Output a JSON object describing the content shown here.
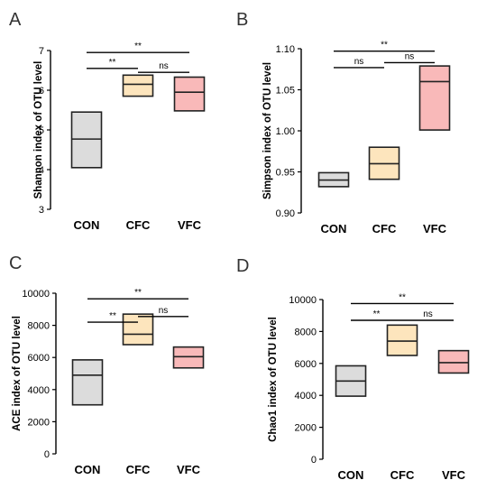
{
  "colors": {
    "CON": "#dcdcdc",
    "CFC": "#fde5bd",
    "VFC": "#f9b9b9",
    "line": "#000000"
  },
  "chart_data": [
    {
      "panel": "A",
      "type": "box",
      "ylabel": "Shannon index of OTU level",
      "ylim": [
        3,
        7
      ],
      "yticks": [
        3,
        4,
        5,
        6,
        7
      ],
      "yticklabels": [
        "3",
        "4",
        "5",
        "6",
        "7"
      ],
      "categories": [
        "CON",
        "CFC",
        "VFC"
      ],
      "boxes": [
        {
          "name": "CON",
          "min": 4.05,
          "median": 4.77,
          "max": 5.45
        },
        {
          "name": "CFC",
          "min": 5.85,
          "median": 6.15,
          "max": 6.38
        },
        {
          "name": "VFC",
          "min": 5.48,
          "median": 5.95,
          "max": 6.33
        }
      ],
      "significance": [
        {
          "from": 0,
          "to": 2,
          "label": "**",
          "level": 6.95
        },
        {
          "from": 0,
          "to": 1,
          "label": "**",
          "level": 6.55
        },
        {
          "from": 1,
          "to": 2,
          "label": "ns",
          "level": 6.45
        }
      ]
    },
    {
      "panel": "B",
      "type": "box",
      "ylabel": "Simpson index of OTU level",
      "ylim": [
        0.9,
        1.1
      ],
      "yticks": [
        0.9,
        0.95,
        1.0,
        1.05,
        1.1
      ],
      "yticklabels": [
        "0.90",
        "0.95",
        "1.00",
        "1.05",
        "1.10"
      ],
      "categories": [
        "CON",
        "CFC",
        "VFC"
      ],
      "boxes": [
        {
          "name": "CON",
          "min": 0.932,
          "median": 0.94,
          "max": 0.949
        },
        {
          "name": "CFC",
          "min": 0.941,
          "median": 0.96,
          "max": 0.98
        },
        {
          "name": "VFC",
          "min": 1.001,
          "median": 1.06,
          "max": 1.079
        }
      ],
      "significance": [
        {
          "from": 0,
          "to": 2,
          "label": "**",
          "level": 1.097
        },
        {
          "from": 0,
          "to": 1,
          "label": "ns",
          "level": 1.077
        },
        {
          "from": 1,
          "to": 2,
          "label": "ns",
          "level": 1.083
        }
      ]
    },
    {
      "panel": "C",
      "type": "box",
      "ylabel": "ACE index of OTU level",
      "ylim": [
        0,
        10000
      ],
      "yticks": [
        0,
        2000,
        4000,
        6000,
        8000,
        10000
      ],
      "yticklabels": [
        "0",
        "2000",
        "4000",
        "6000",
        "8000",
        "10000"
      ],
      "categories": [
        "CON",
        "CFC",
        "VFC"
      ],
      "boxes": [
        {
          "name": "CON",
          "min": 3050,
          "median": 4900,
          "max": 5850
        },
        {
          "name": "CFC",
          "min": 6800,
          "median": 7450,
          "max": 8700
        },
        {
          "name": "VFC",
          "min": 5350,
          "median": 6050,
          "max": 6650
        }
      ],
      "significance": [
        {
          "from": 0,
          "to": 2,
          "label": "**",
          "level": 9650
        },
        {
          "from": 0,
          "to": 1,
          "label": "**",
          "level": 8200
        },
        {
          "from": 1,
          "to": 2,
          "label": "ns",
          "level": 8550
        }
      ]
    },
    {
      "panel": "D",
      "type": "box",
      "ylabel": "Chao1 index of OTU level",
      "ylim": [
        0,
        10000
      ],
      "yticks": [
        0,
        2000,
        4000,
        6000,
        8000,
        10000
      ],
      "yticklabels": [
        "0",
        "2000",
        "4000",
        "6000",
        "8000",
        "10000"
      ],
      "categories": [
        "CON",
        "CFC",
        "VFC"
      ],
      "boxes": [
        {
          "name": "CON",
          "min": 3950,
          "median": 4900,
          "max": 5850
        },
        {
          "name": "CFC",
          "min": 6500,
          "median": 7400,
          "max": 8400
        },
        {
          "name": "VFC",
          "min": 5400,
          "median": 6050,
          "max": 6800
        }
      ],
      "significance": [
        {
          "from": 0,
          "to": 2,
          "label": "**",
          "level": 9750
        },
        {
          "from": 0,
          "to": 1,
          "label": "**",
          "level": 8700
        },
        {
          "from": 1,
          "to": 2,
          "label": "ns",
          "level": 8700
        }
      ]
    }
  ]
}
